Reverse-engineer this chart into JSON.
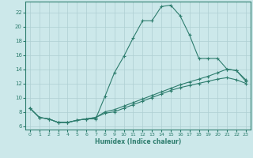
{
  "xlabel": "Humidex (Indice chaleur)",
  "xlim": [
    -0.5,
    23.5
  ],
  "ylim": [
    5.5,
    23.5
  ],
  "xticks": [
    0,
    1,
    2,
    3,
    4,
    5,
    6,
    7,
    8,
    9,
    10,
    11,
    12,
    13,
    14,
    15,
    16,
    17,
    18,
    19,
    20,
    21,
    22,
    23
  ],
  "yticks": [
    6,
    8,
    10,
    12,
    14,
    16,
    18,
    20,
    22
  ],
  "bg_color": "#cce8ea",
  "line_color": "#2e7d6e",
  "grid_color": "#aecfd2",
  "line1_x": [
    0,
    1,
    2,
    3,
    4,
    5,
    6,
    7,
    8,
    9,
    10,
    11,
    12,
    13,
    14,
    15,
    16,
    17,
    18,
    19,
    20,
    21,
    22,
    23
  ],
  "line1_y": [
    8.5,
    7.2,
    7.0,
    6.5,
    6.5,
    6.8,
    7.0,
    7.0,
    10.2,
    13.5,
    15.8,
    18.4,
    20.8,
    20.8,
    22.8,
    23.0,
    21.5,
    18.8,
    15.5,
    15.5,
    15.5,
    14.0,
    13.8,
    12.5
  ],
  "line2_x": [
    0,
    1,
    2,
    3,
    4,
    5,
    6,
    7,
    8,
    9,
    10,
    11,
    12,
    13,
    14,
    15,
    16,
    17,
    18,
    19,
    20,
    21,
    22,
    23
  ],
  "line2_y": [
    8.5,
    7.2,
    7.0,
    6.5,
    6.5,
    6.8,
    7.0,
    7.2,
    8.0,
    8.3,
    8.8,
    9.3,
    9.8,
    10.3,
    10.8,
    11.3,
    11.8,
    12.2,
    12.6,
    13.0,
    13.5,
    14.0,
    13.8,
    12.3
  ],
  "line3_x": [
    0,
    1,
    2,
    3,
    4,
    5,
    6,
    7,
    8,
    9,
    10,
    11,
    12,
    13,
    14,
    15,
    16,
    17,
    18,
    19,
    20,
    21,
    22,
    23
  ],
  "line3_y": [
    8.5,
    7.2,
    7.0,
    6.5,
    6.5,
    6.8,
    7.0,
    7.2,
    7.8,
    8.0,
    8.5,
    9.0,
    9.5,
    10.0,
    10.5,
    11.0,
    11.4,
    11.7,
    12.0,
    12.3,
    12.6,
    12.8,
    12.5,
    12.0
  ]
}
